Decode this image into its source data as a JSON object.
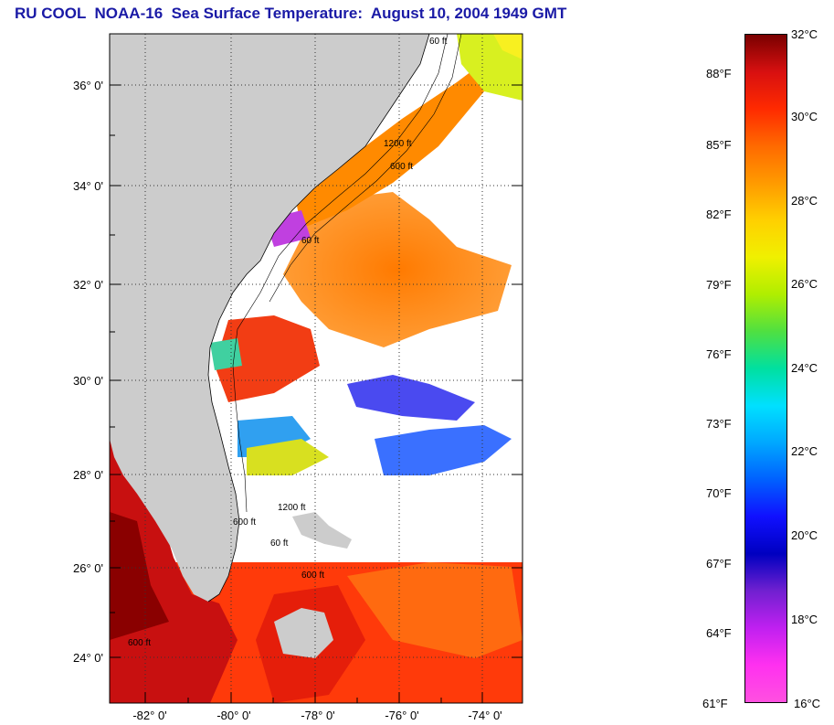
{
  "title": "RU COOL  NOAA-16  Sea Surface Temperature:  August 10, 2004 1949 GMT",
  "map": {
    "lat_labels": [
      "36° 0'",
      "34° 0'",
      "32° 0'",
      "30° 0'",
      "28° 0'",
      "26° 0'",
      "24° 0'"
    ],
    "lon_labels": [
      "-82° 0'",
      "-80° 0'",
      "-78° 0'",
      "-76° 0'",
      "-74° 0'"
    ],
    "contour_labels": [
      "60 ft",
      "600 ft",
      "1200 ft",
      "60 ft",
      "600 ft",
      "1200 ft",
      "600 ft",
      "60 ft",
      "600 ft"
    ],
    "land_color": "#cccccc",
    "cloud_color": "#ffffff",
    "gridline_style": "dotted"
  },
  "colorbar": {
    "fahrenheit_labels": [
      "88°F",
      "85°F",
      "82°F",
      "79°F",
      "76°F",
      "73°F",
      "70°F",
      "67°F",
      "64°F",
      "61°F"
    ],
    "celsius_labels": [
      "32°C",
      "30°C",
      "28°C",
      "26°C",
      "24°C",
      "22°C",
      "20°C",
      "18°C",
      "16°C"
    ],
    "colors": [
      "#7a0000",
      "#d81010",
      "#ff2a00",
      "#ff6a00",
      "#ff9a00",
      "#ffd000",
      "#f0f000",
      "#b0ee00",
      "#50e040",
      "#00e0a0",
      "#00e0ff",
      "#00a8ff",
      "#0060ff",
      "#1010ff",
      "#0000c0",
      "#7020d0",
      "#c020f0",
      "#ff30f0",
      "#ff50e0"
    ]
  }
}
